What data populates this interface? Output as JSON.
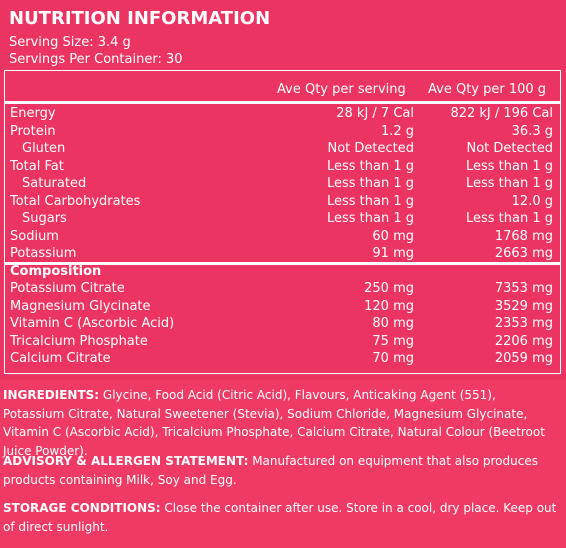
{
  "panel": {
    "title": "NUTRITION INFORMATION",
    "serving_size": "Serving Size: 3.4 g",
    "servings_per_container": "Servings Per Container: 30"
  },
  "table": {
    "headers": [
      "Ave Qty per serving",
      "Ave Qty per 100 g"
    ],
    "rows": [
      {
        "label": "Energy",
        "serving": "28 kJ / 7 Cal",
        "per100": "822 kJ / 196 Cal",
        "indent": false,
        "bold": false
      },
      {
        "label": "Protein",
        "serving": "1.2 g",
        "per100": "36.3 g",
        "indent": false,
        "bold": false
      },
      {
        "label": "Gluten",
        "serving": "Not Detected",
        "per100": "Not Detected",
        "indent": true,
        "bold": false
      },
      {
        "label": "Total Fat",
        "serving": "Less than 1 g",
        "per100": "Less than 1 g",
        "indent": false,
        "bold": false
      },
      {
        "label": "Saturated",
        "serving": "Less than 1 g",
        "per100": "Less than 1 g",
        "indent": true,
        "bold": false
      },
      {
        "label": "Total Carbohydrates",
        "serving": "Less than 1 g",
        "per100": "12.0 g",
        "indent": false,
        "bold": false
      },
      {
        "label": "Sugars",
        "serving": "Less than 1 g",
        "per100": "Less than 1 g",
        "indent": true,
        "bold": false
      },
      {
        "label": "Sodium",
        "serving": "60 mg",
        "per100": "1768 mg",
        "indent": false,
        "bold": false
      },
      {
        "label": "Potassium",
        "serving": "91 mg",
        "per100": "2663 mg",
        "indent": false,
        "bold": false
      },
      {
        "label": "Composition",
        "serving": "",
        "per100": "",
        "indent": false,
        "bold": true
      },
      {
        "label": "Potassium Citrate",
        "serving": "250 mg",
        "per100": "7353 mg",
        "indent": false,
        "bold": false
      },
      {
        "label": "Magnesium Glycinate",
        "serving": "120 mg",
        "per100": "3529 mg",
        "indent": false,
        "bold": false
      },
      {
        "label": "Vitamin C (Ascorbic Acid)",
        "serving": "80 mg",
        "per100": "2353 mg",
        "indent": false,
        "bold": false
      },
      {
        "label": "Tricalcium Phosphate",
        "serving": "75 mg",
        "per100": "2206 mg",
        "indent": false,
        "bold": false
      },
      {
        "label": "Calcium Citrate",
        "serving": "70 mg",
        "per100": "2059 mg",
        "indent": false,
        "bold": false
      }
    ]
  },
  "notes": {
    "ingredients_heading": "INGREDIENTS:",
    "ingredients_text": " Glycine, Food Acid (Citric Acid), Flavours, Anticaking Agent (551), Potassium Citrate, Natural Sweetener (Stevia), Sodium Chloride, Magnesium Glycinate, Vitamin C (Ascorbic Acid), Tricalcium Phosphate, Calcium Citrate, Natural Colour (Beetroot Juice Powder).",
    "advisory_heading": "ADVISORY & ALLERGEN STATEMENT:",
    "advisory_text": " Manufactured on equipment that also produces products containing Milk, Soy and Egg.",
    "storage_heading": "STORAGE CONDITIONS:",
    "storage_text": " Close the container after use. Store in a cool, dry place. Keep out of direct sunlight."
  },
  "colors": {
    "background": "#ef3a65",
    "panel": "#ec3462",
    "text": "#ffffff"
  }
}
